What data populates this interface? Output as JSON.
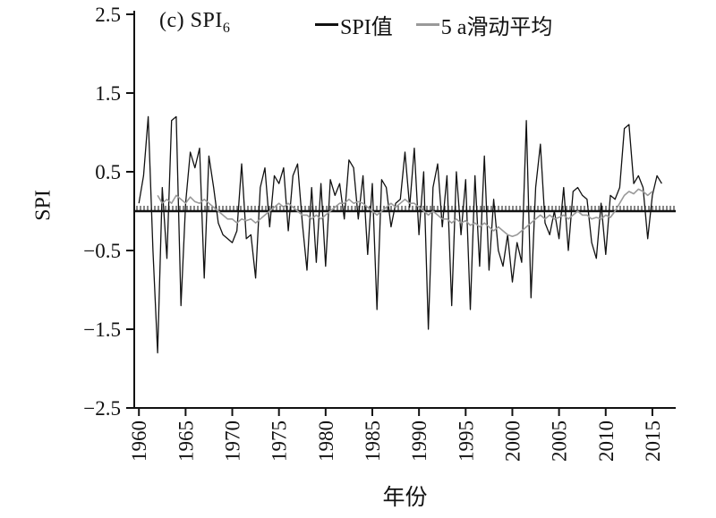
{
  "chart": {
    "title_main": "(c) SPI",
    "title_sub": "6",
    "ylabel": "SPI",
    "xlabel": "年份",
    "legend": [
      {
        "label": "SPI值",
        "color": "#111111"
      },
      {
        "label": "5 a滑动平均",
        "color": "#9a9a9a"
      }
    ]
  },
  "chart_data": {
    "type": "line",
    "title": "(c) SPI6",
    "xlabel": "年份",
    "ylabel": "SPI",
    "xlim": [
      1959.5,
      2017.5
    ],
    "ylim": [
      -2.5,
      2.5
    ],
    "grid": false,
    "legend_position": "top",
    "zero_line": true,
    "yticks": [
      {
        "v": 2.5,
        "label": "2.5"
      },
      {
        "v": 1.5,
        "label": "1.5"
      },
      {
        "v": 0.5,
        "label": "0.5"
      },
      {
        "v": -0.5,
        "label": "−0.5"
      },
      {
        "v": -1.5,
        "label": "−1.5"
      },
      {
        "v": -2.5,
        "label": "−2.5"
      }
    ],
    "xticks": [
      1960,
      1965,
      1970,
      1975,
      1980,
      1985,
      1990,
      1995,
      2000,
      2005,
      2010,
      2015
    ],
    "series": [
      {
        "name": "SPI值",
        "color": "#111111",
        "width": 1.3,
        "x_start": 1960.0,
        "x_step": 0.5,
        "values": [
          0.1,
          0.45,
          1.2,
          -0.5,
          -1.8,
          0.3,
          -0.6,
          1.15,
          1.2,
          -1.2,
          0.1,
          0.75,
          0.55,
          0.8,
          -0.85,
          0.7,
          0.3,
          -0.15,
          -0.3,
          -0.35,
          -0.4,
          -0.25,
          0.6,
          -0.35,
          -0.3,
          -0.85,
          0.3,
          0.55,
          -0.2,
          0.45,
          0.35,
          0.55,
          -0.25,
          0.45,
          0.6,
          -0.15,
          -0.75,
          0.3,
          -0.65,
          0.35,
          -0.7,
          0.4,
          0.2,
          0.35,
          -0.1,
          0.65,
          0.55,
          -0.1,
          0.45,
          -0.55,
          0.35,
          -1.25,
          0.4,
          0.3,
          -0.2,
          0.1,
          0.15,
          0.75,
          0.05,
          0.8,
          -0.3,
          0.5,
          -1.5,
          0.3,
          0.6,
          -0.2,
          0.45,
          -1.2,
          0.5,
          -0.3,
          0.4,
          -1.25,
          0.45,
          -0.7,
          0.7,
          -0.75,
          0.15,
          -0.5,
          -0.7,
          -0.3,
          -0.9,
          -0.4,
          -0.65,
          1.15,
          -1.1,
          0.3,
          0.85,
          -0.15,
          -0.3,
          0.0,
          -0.35,
          0.3,
          -0.5,
          0.25,
          0.3,
          0.2,
          0.15,
          -0.4,
          -0.6,
          0.1,
          -0.55,
          0.2,
          0.15,
          0.3,
          1.05,
          1.1,
          0.35,
          0.45,
          0.3,
          -0.35,
          0.2,
          0.45,
          0.35
        ]
      },
      {
        "name": "5 a滑动平均",
        "color": "#9a9a9a",
        "width": 1.6,
        "x_start": 1962.0,
        "x_step": 0.5,
        "values": [
          0.2,
          0.1,
          0.15,
          0.1,
          0.2,
          0.15,
          0.1,
          0.18,
          0.12,
          0.1,
          0.15,
          0.1,
          0.05,
          0.0,
          -0.05,
          -0.1,
          -0.1,
          -0.15,
          -0.1,
          -0.12,
          -0.1,
          -0.15,
          -0.1,
          -0.05,
          0.0,
          0.05,
          0.1,
          0.05,
          0.1,
          0.05,
          0.0,
          -0.05,
          -0.05,
          -0.1,
          -0.05,
          -0.1,
          -0.05,
          0.0,
          0.05,
          0.1,
          0.1,
          0.15,
          0.1,
          0.12,
          0.1,
          0.05,
          0.0,
          -0.05,
          0.0,
          0.05,
          0.1,
          0.05,
          0.1,
          0.15,
          0.1,
          0.1,
          0.05,
          0.0,
          -0.05,
          0.0,
          -0.05,
          -0.1,
          -0.1,
          -0.15,
          -0.1,
          -0.15,
          -0.12,
          -0.18,
          -0.15,
          -0.2,
          -0.15,
          -0.2,
          -0.25,
          -0.2,
          -0.25,
          -0.3,
          -0.32,
          -0.3,
          -0.25,
          -0.2,
          -0.15,
          -0.1,
          -0.05,
          -0.1,
          -0.05,
          -0.1,
          -0.08,
          -0.05,
          -0.1,
          -0.05,
          0.0,
          -0.05,
          -0.05,
          -0.1,
          -0.08,
          -0.1,
          -0.05,
          -0.08,
          0.0,
          0.1,
          0.2,
          0.25,
          0.22,
          0.28,
          0.25,
          0.2,
          0.25
        ]
      }
    ]
  }
}
